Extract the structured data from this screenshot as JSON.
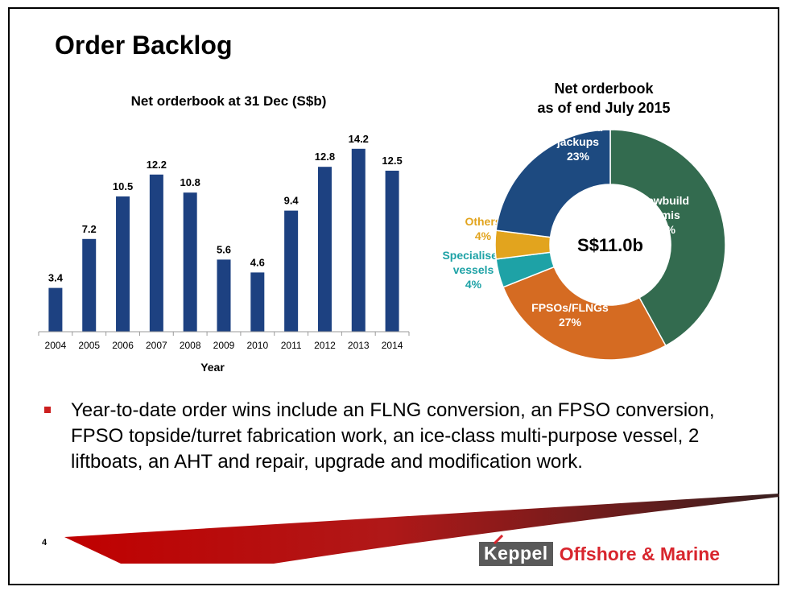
{
  "slide": {
    "title": "Order Backlog",
    "page_number": "4",
    "bullet": "Year-to-date order wins include an FLNG conversion, an FPSO conversion, FPSO topside/turret fabrication work, an ice-class multi-purpose vessel, 2 liftboats, an AHT and repair, upgrade and modification work."
  },
  "logo": {
    "brand": "Keppel",
    "division": "Offshore & Marine"
  },
  "colors": {
    "bar": "#1d4181",
    "newbuild_semis": "#336b4f",
    "fpsos_flngs": "#d56b22",
    "specialised_vessels": "#1ea2a6",
    "others": "#e2a41e",
    "newbuild_jackups": "#1d4a80",
    "accent_red": "#cc1f1f"
  },
  "chart_data": [
    {
      "type": "bar",
      "title": "Net orderbook at 31 Dec (S$b)",
      "xlabel": "Year",
      "ylabel": "",
      "categories": [
        "2004",
        "2005",
        "2006",
        "2007",
        "2008",
        "2009",
        "2010",
        "2011",
        "2012",
        "2013",
        "2014"
      ],
      "values": [
        3.4,
        7.2,
        10.5,
        12.2,
        10.8,
        5.6,
        4.6,
        9.4,
        12.8,
        14.2,
        12.5
      ],
      "value_labels": [
        "3.4",
        "7.2",
        "10.5",
        "12.2",
        "10.8",
        "5.6",
        "4.6",
        "9.4",
        "12.8",
        "14.2",
        "12.5"
      ],
      "ylim": [
        0,
        16
      ],
      "grid": false
    },
    {
      "type": "pie",
      "subtype": "donut",
      "title_line1": "Net orderbook",
      "title_line2": "as of end July 2015",
      "center_label": "S$11.0b",
      "slices": [
        {
          "name_line1": "Newbuild",
          "name_line2": "semis",
          "pct_label": "42%",
          "value": 42,
          "color_key": "newbuild_semis"
        },
        {
          "name_line1": "FPSOs/FLNGs",
          "name_line2": "",
          "pct_label": "27%",
          "value": 27,
          "color_key": "fpsos_flngs"
        },
        {
          "name_line1": "Specialised",
          "name_line2": "vessels",
          "pct_label": "4%",
          "value": 4,
          "color_key": "specialised_vessels"
        },
        {
          "name_line1": "Others",
          "name_line2": "",
          "pct_label": "4%",
          "value": 4,
          "color_key": "others"
        },
        {
          "name_line1": "Newbuild",
          "name_line2": "jackups",
          "pct_label": "23%",
          "value": 23,
          "color_key": "newbuild_jackups"
        }
      ]
    }
  ]
}
